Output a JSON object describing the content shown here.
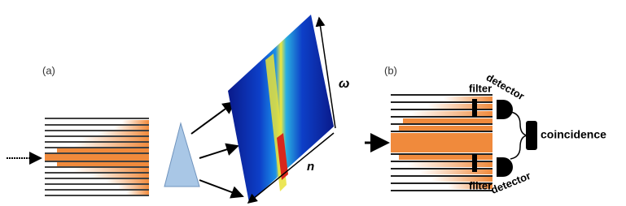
{
  "panel_a": {
    "label": "(a)",
    "omega": "ω",
    "n": "n"
  },
  "panel_b": {
    "label": "(b)",
    "filters": [
      "filter",
      "filter"
    ],
    "detectors": [
      "detector",
      "detector"
    ],
    "coincidence": "coincidence"
  }
}
